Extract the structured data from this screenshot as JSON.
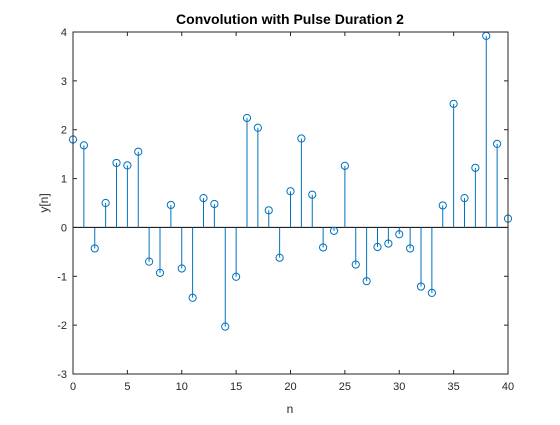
{
  "chart_data": {
    "type": "stem",
    "title": "Convolution with Pulse Duration 2",
    "xlabel": "n",
    "ylabel": "y[n]",
    "xlim": [
      0,
      40
    ],
    "ylim": [
      -3,
      4
    ],
    "xticks": [
      0,
      5,
      10,
      15,
      20,
      25,
      30,
      35,
      40
    ],
    "yticks": [
      -3,
      -2,
      -1,
      0,
      1,
      2,
      3,
      4
    ],
    "grid": false,
    "series": [
      {
        "color": "#0072bd",
        "x": [
          0,
          1,
          2,
          3,
          4,
          5,
          6,
          7,
          8,
          9,
          10,
          11,
          12,
          13,
          14,
          15,
          16,
          17,
          18,
          19,
          20,
          21,
          22,
          23,
          24,
          25,
          26,
          27,
          28,
          29,
          30,
          31,
          32,
          33,
          34,
          35,
          36,
          37,
          38,
          39,
          40
        ],
        "y": [
          1.8,
          1.68,
          -0.43,
          0.5,
          1.32,
          1.27,
          1.55,
          -0.7,
          -0.93,
          0.46,
          -0.84,
          -1.44,
          0.6,
          0.48,
          -2.03,
          -1.01,
          2.24,
          2.04,
          0.35,
          -0.62,
          0.74,
          1.82,
          0.67,
          -0.41,
          -0.07,
          1.26,
          -0.76,
          -1.1,
          -0.4,
          -0.33,
          -0.14,
          -0.43,
          -1.21,
          -1.34,
          0.45,
          2.53,
          0.6,
          1.22,
          3.92,
          1.71,
          0.18
        ]
      }
    ]
  }
}
